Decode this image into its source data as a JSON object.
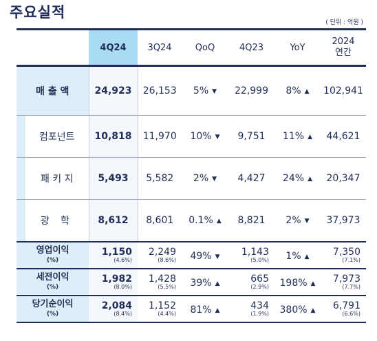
{
  "title": "주요실적",
  "unit": "( 단위 : 억원 )",
  "columns": {
    "cur": "4Q24",
    "prev_q": "3Q24",
    "qoq": "QoQ",
    "prev_y": "4Q23",
    "yoy": "YoY",
    "annual_line1": "2024",
    "annual_line2": "연간"
  },
  "rows": {
    "sales": {
      "label": "매 출 액",
      "cur": "24,923",
      "prev_q": "26,153",
      "qoq": "5%",
      "qoq_dir": "down",
      "prev_y": "22,999",
      "yoy": "8%",
      "yoy_dir": "up",
      "annual": "102,941"
    },
    "component": {
      "label": "컴포넌트",
      "cur": "10,818",
      "prev_q": "11,970",
      "qoq": "10%",
      "qoq_dir": "down",
      "prev_y": "9,751",
      "yoy": "11%",
      "yoy_dir": "up",
      "annual": "44,621"
    },
    "package": {
      "label": "패 키 지",
      "cur": "5,493",
      "prev_q": "5,582",
      "qoq": "2%",
      "qoq_dir": "down",
      "prev_y": "4,427",
      "yoy": "24%",
      "yoy_dir": "up",
      "annual": "20,347"
    },
    "optics": {
      "label": "광 학",
      "cur": "8,612",
      "prev_q": "8,601",
      "qoq": "0.1%",
      "qoq_dir": "up",
      "prev_y": "8,821",
      "yoy": "2%",
      "yoy_dir": "down",
      "annual": "37,973"
    },
    "op_profit": {
      "label": "영업이익",
      "pct_label": "(%)",
      "cur": "1,150",
      "cur_pct": "(4.6%)",
      "prev_q": "2,249",
      "prev_q_pct": "(8.6%)",
      "qoq": "49%",
      "qoq_dir": "down",
      "prev_y": "1,143",
      "prev_y_pct": "(5.0%)",
      "yoy": "1%",
      "yoy_dir": "up",
      "annual": "7,350",
      "annual_pct": "(7.1%)"
    },
    "pretax": {
      "label": "세전이익",
      "pct_label": "(%)",
      "cur": "1,982",
      "cur_pct": "(8.0%)",
      "prev_q": "1,428",
      "prev_q_pct": "(5.5%)",
      "qoq": "39%",
      "qoq_dir": "up",
      "prev_y": "665",
      "prev_y_pct": "(2.9%)",
      "yoy": "198%",
      "yoy_dir": "up",
      "annual": "7,973",
      "annual_pct": "(7.7%)"
    },
    "net": {
      "label": "당기순이익",
      "pct_label": "(%)",
      "cur": "2,084",
      "cur_pct": "(8.4%)",
      "prev_q": "1,152",
      "prev_q_pct": "(4.4%)",
      "qoq": "81%",
      "qoq_dir": "up",
      "prev_y": "434",
      "prev_y_pct": "(1.9%)",
      "yoy": "380%",
      "yoy_dir": "up",
      "annual": "6,791",
      "annual_pct": "(6.6%)"
    }
  },
  "arrow_glyphs": {
    "up": "▲",
    "down": "▼"
  }
}
